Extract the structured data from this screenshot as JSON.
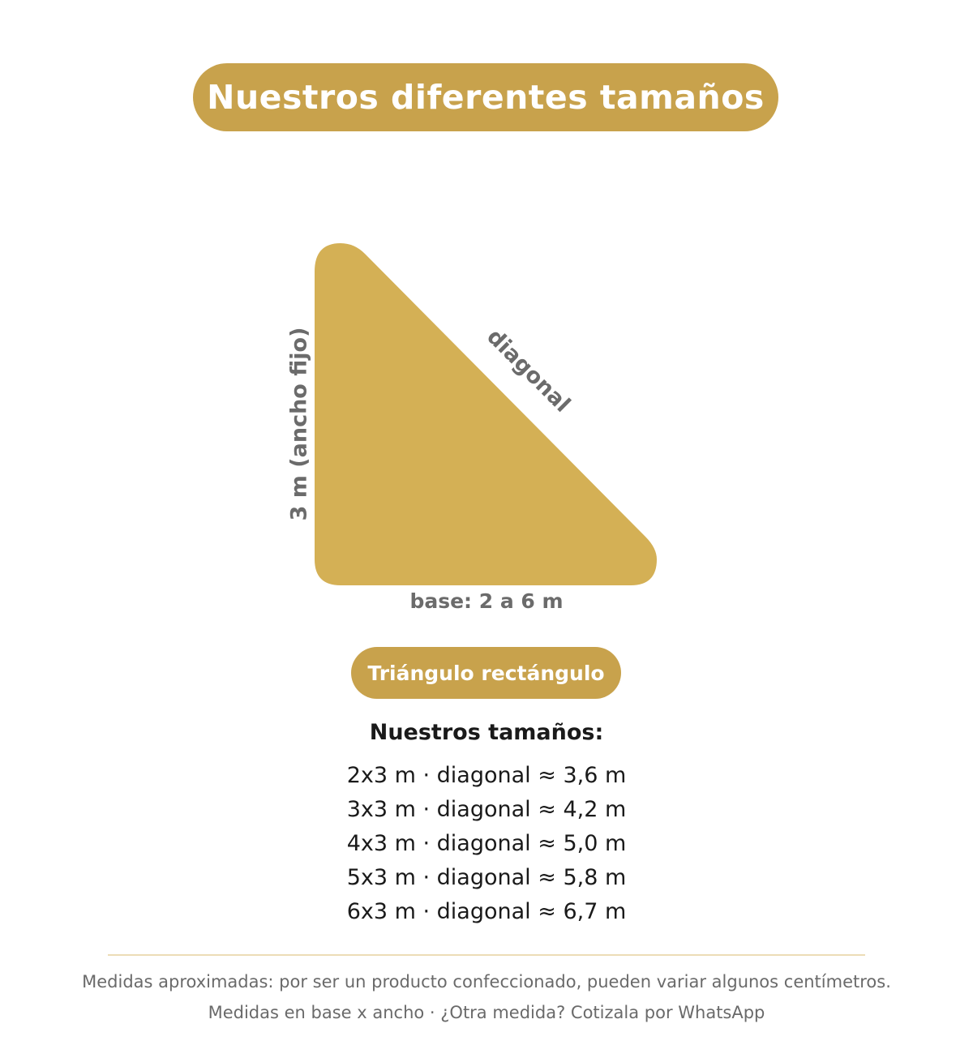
{
  "header": {
    "title": "Nuestros diferentes tamaños"
  },
  "diagram": {
    "shape_color": "#d4b055",
    "label_height": "3 m (ancho fijo)",
    "label_diagonal": "diagonal",
    "label_base": "base: 2 a 6 m"
  },
  "shape": {
    "name": "Triángulo rectángulo"
  },
  "sizes": {
    "heading": "Nuestros tamaños:",
    "items": [
      "2x3 m · diagonal ≈ 3,6 m",
      "3x3 m · diagonal ≈ 4,2 m",
      "4x3 m · diagonal ≈ 5,0 m",
      "5x3 m · diagonal ≈ 5,8 m",
      "6x3 m · diagonal ≈ 6,7 m"
    ]
  },
  "footer": {
    "note_1": "Medidas aproximadas: por ser un producto confeccionado, pueden variar algunos centímetros.",
    "note_2": "Medidas en base x ancho · ¿Otra medida? Cotizala por WhatsApp"
  }
}
